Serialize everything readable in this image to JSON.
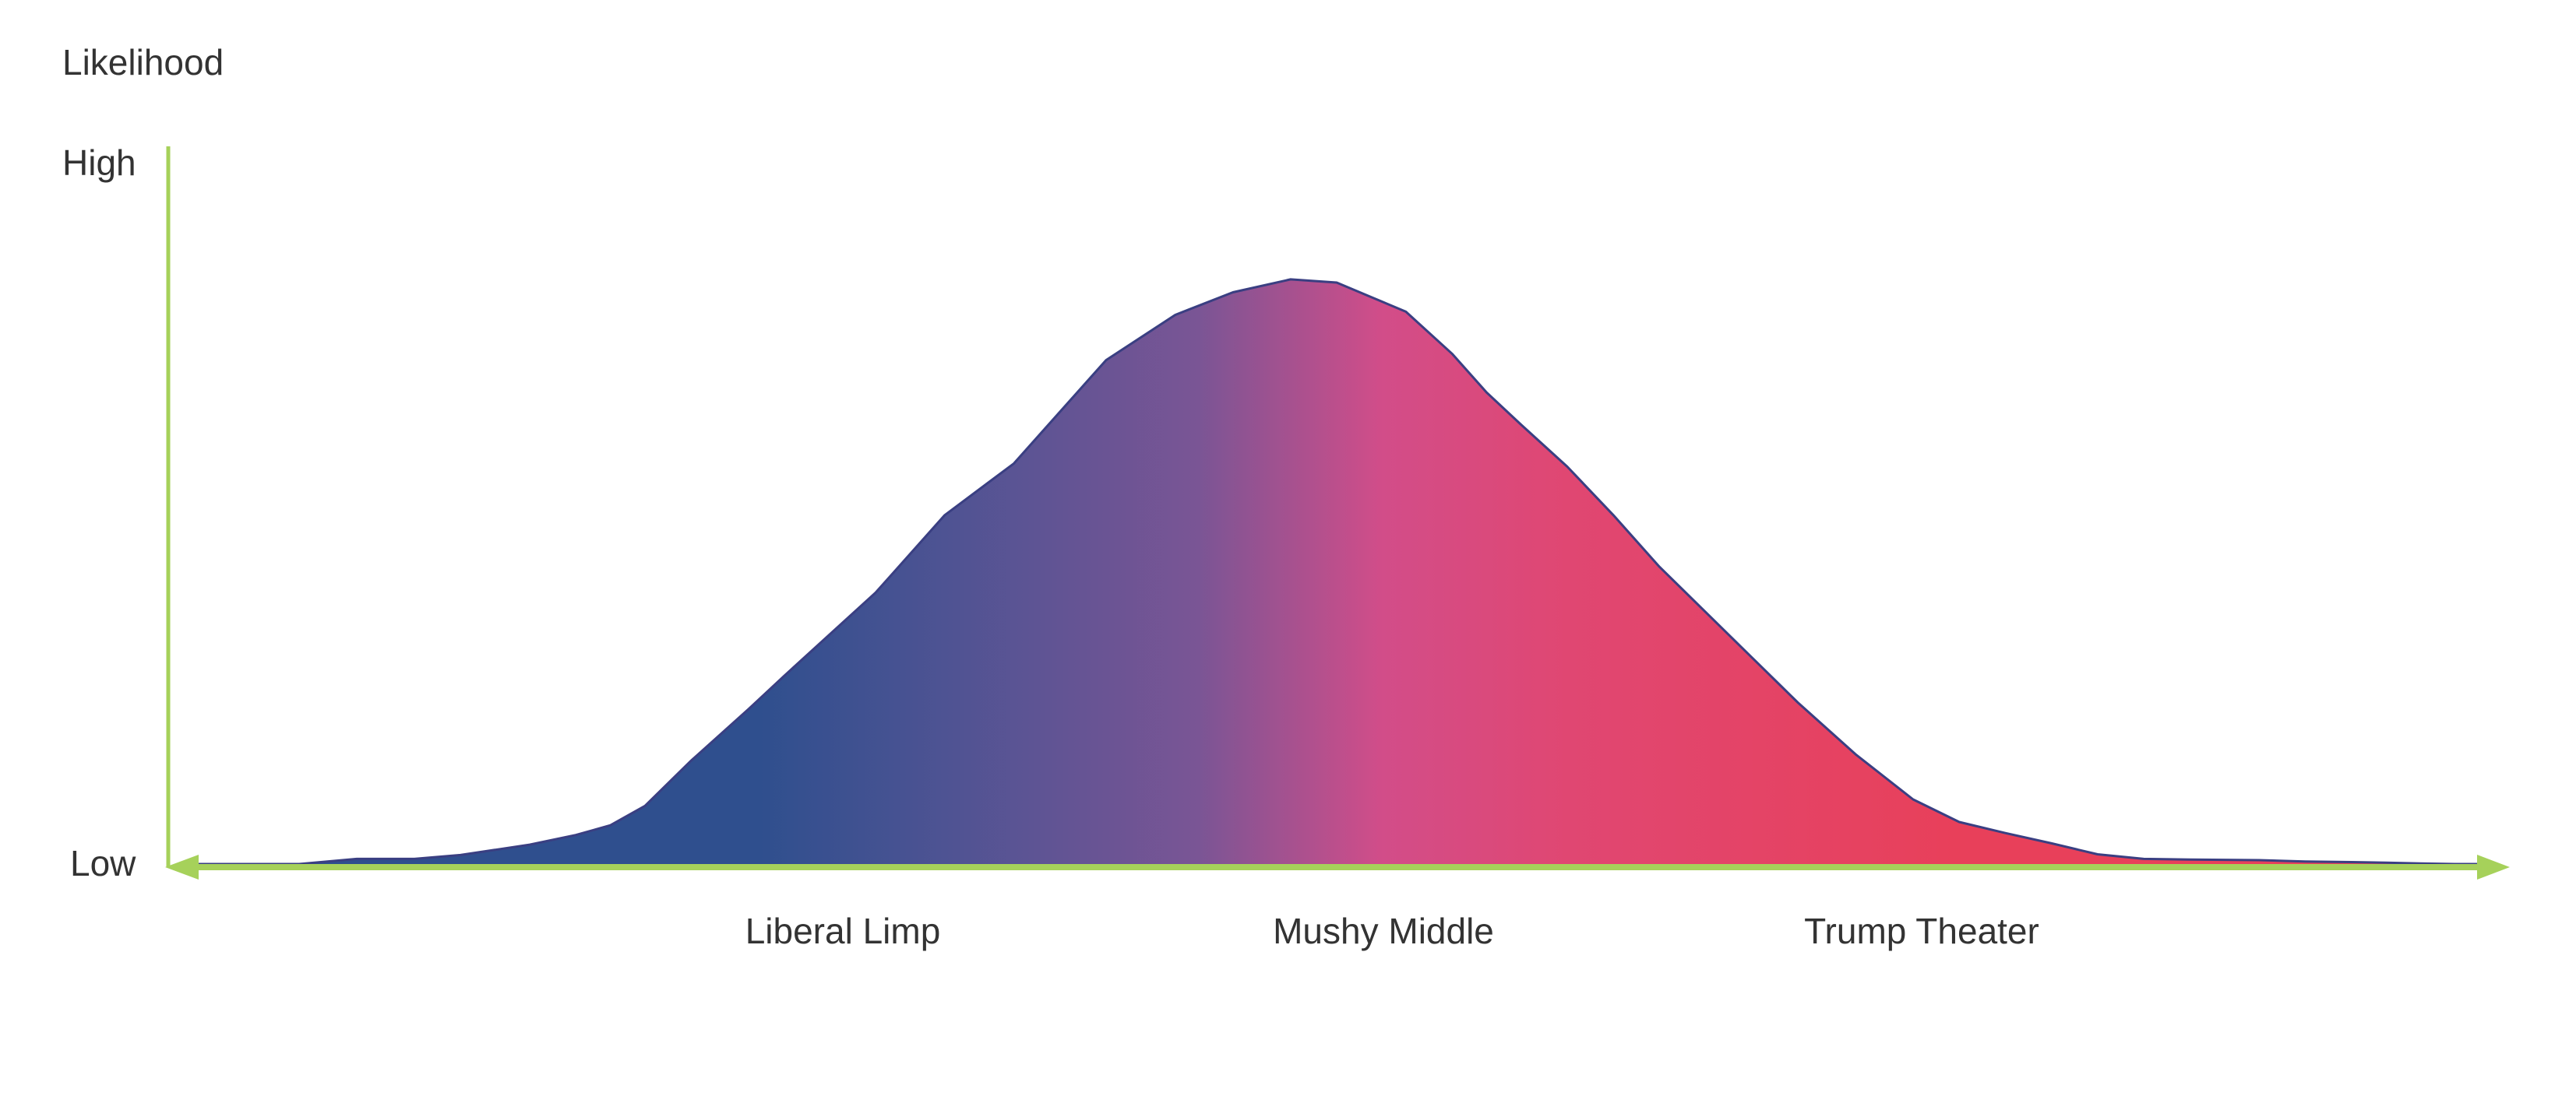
{
  "chart_data": {
    "type": "area",
    "title": "",
    "ylabel": "Likelihood",
    "ytick_labels": [
      "High",
      "Low"
    ],
    "xtick_labels": [
      "Liberal Limp",
      "Mushy Middle",
      "Trump Theater"
    ],
    "ylim": [
      0,
      1
    ],
    "xlim": [
      0,
      1
    ],
    "grid": false,
    "legend": "none",
    "series": [
      {
        "x": [
          0.0,
          0.05,
          0.075,
          0.09,
          0.1,
          0.12,
          0.15,
          0.17,
          0.185,
          0.2,
          0.22,
          0.245,
          0.26,
          0.3,
          0.33,
          0.36,
          0.385,
          0.4,
          0.43,
          0.455,
          0.48,
          0.5,
          0.53,
          0.55,
          0.565,
          0.58,
          0.6,
          0.62,
          0.64,
          0.66,
          0.68,
          0.7,
          0.725,
          0.75,
          0.77,
          0.79,
          0.81,
          0.83,
          0.85,
          0.87,
          0.9,
          0.92,
          0.94,
          0.955,
          0.97,
          0.985,
          1.0
        ],
        "y": [
          0.0,
          0.0,
          0.008,
          0.008,
          0.008,
          0.014,
          0.03,
          0.045,
          0.06,
          0.09,
          0.16,
          0.24,
          0.29,
          0.42,
          0.54,
          0.62,
          0.72,
          0.78,
          0.85,
          0.885,
          0.905,
          0.9,
          0.855,
          0.79,
          0.73,
          0.68,
          0.615,
          0.54,
          0.46,
          0.39,
          0.32,
          0.25,
          0.17,
          0.1,
          0.065,
          0.048,
          0.032,
          0.015,
          0.008,
          0.007,
          0.006,
          0.004,
          0.003,
          0.002,
          0.001,
          0.0,
          0.0
        ]
      }
    ],
    "gradient_colors": [
      "#2f4f8e",
      "#4e5393",
      "#7a5595",
      "#d24d89",
      "#e04772",
      "#e8405a"
    ],
    "axis_color": "#a6d15a",
    "line_color": "#3a3f82"
  }
}
